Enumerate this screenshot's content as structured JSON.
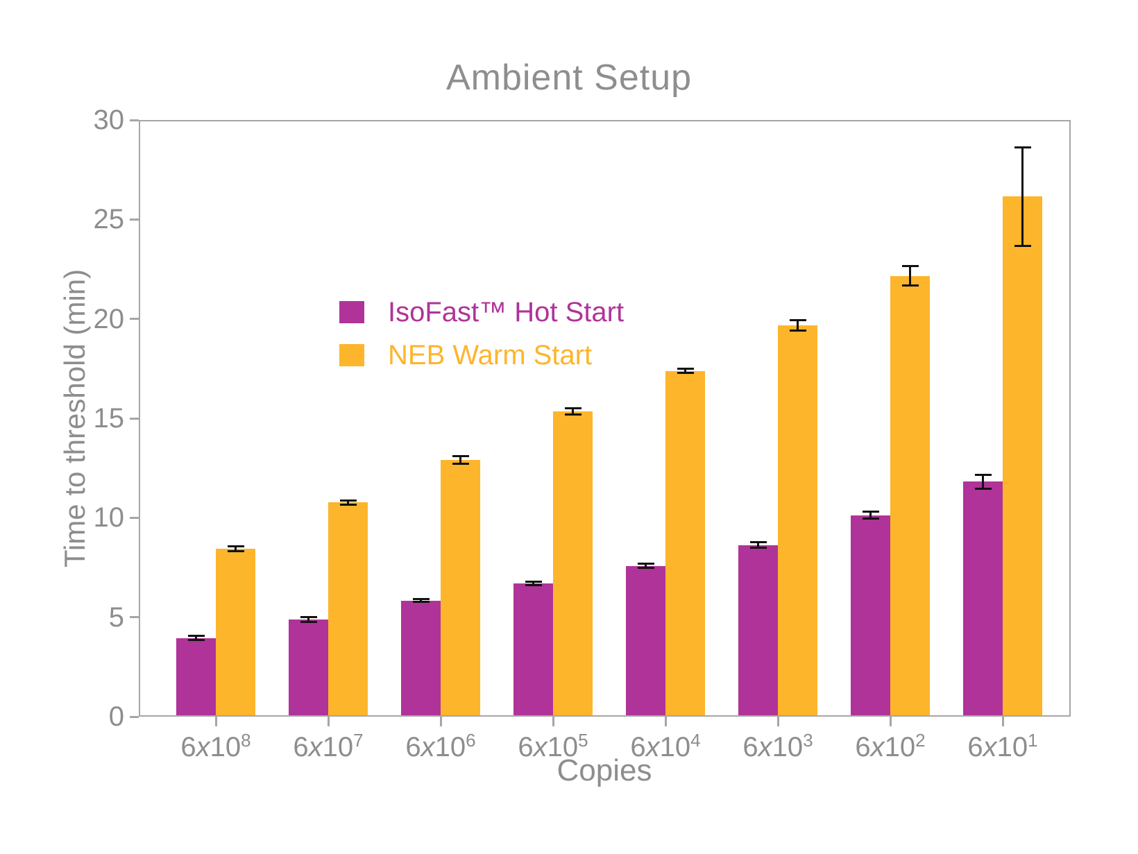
{
  "chart_data": {
    "type": "bar",
    "title": "Ambient Setup",
    "xlabel": "Copies",
    "ylabel": "Time to threshold (min)",
    "categories": [
      "6x10^8",
      "6x10^7",
      "6x10^6",
      "6x10^5",
      "6x10^4",
      "6x10^3",
      "6x10^2",
      "6x10^1"
    ],
    "series": [
      {
        "name": "IsoFast™ Hot Start",
        "color": "#b03399",
        "values": [
          3.9,
          4.85,
          5.8,
          6.65,
          7.55,
          8.6,
          10.1,
          11.8
        ],
        "errors": [
          0.1,
          0.12,
          0.07,
          0.08,
          0.1,
          0.15,
          0.18,
          0.35
        ]
      },
      {
        "name": "NEB Warm Start",
        "color": "#fdb52b",
        "values": [
          8.4,
          10.75,
          12.9,
          15.35,
          17.4,
          19.7,
          22.2,
          26.2
        ],
        "errors": [
          0.12,
          0.1,
          0.18,
          0.15,
          0.1,
          0.25,
          0.5,
          2.5
        ]
      }
    ],
    "ylim": [
      0,
      30
    ],
    "y_ticks": [
      0,
      5,
      10,
      15,
      20,
      25,
      30
    ],
    "grid": false,
    "legend_position": "upper-left",
    "error_bar_color": "#111111",
    "axis_color": "#a6a6a6",
    "text_color": "#8d8d8d"
  }
}
